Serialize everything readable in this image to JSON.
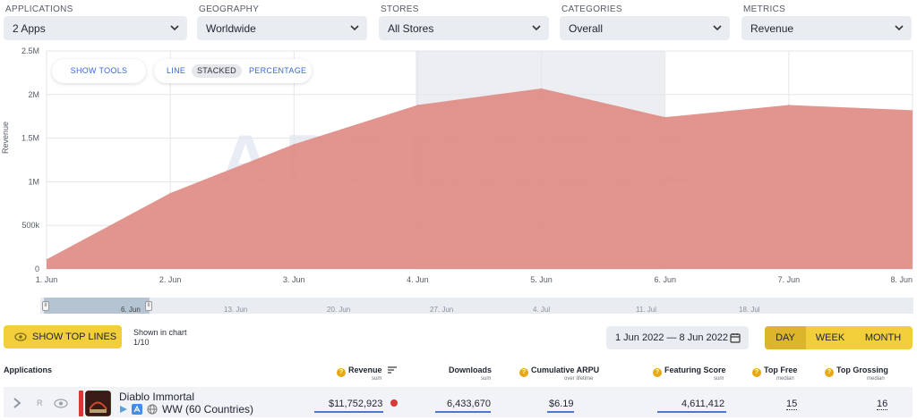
{
  "filters": [
    {
      "label": "APPLICATIONS",
      "value": "2 Apps"
    },
    {
      "label": "GEOGRAPHY",
      "value": "Worldwide"
    },
    {
      "label": "STORES",
      "value": "All Stores"
    },
    {
      "label": "CATEGORIES",
      "value": "Overall"
    },
    {
      "label": "METRICS",
      "value": "Revenue"
    }
  ],
  "chart": {
    "show_tools": "SHOW TOOLS",
    "modes": [
      "LINE",
      "STACKED",
      "PERCENTAGE"
    ],
    "active_mode": "STACKED",
    "watermark": "APPMAGIC"
  },
  "chart_data": {
    "type": "area",
    "categories": [
      "1. Jun",
      "2. Jun",
      "3. Jun",
      "4. Jun",
      "5. Jun",
      "6. Jun",
      "7. Jun",
      "8. Jun"
    ],
    "series": [
      {
        "values": [
          110000,
          870000,
          1430000,
          1880000,
          2070000,
          1740000,
          1880000,
          1820000
        ],
        "color": "#e08b84"
      }
    ],
    "ylabel": "Revenue",
    "yticks": [
      "0",
      "500k",
      "1M",
      "1.5M",
      "2M",
      "2.5M"
    ],
    "ylim": [
      0,
      2500000
    ],
    "grid": true
  },
  "navigator": {
    "labels": [
      "6. Jun",
      "13. Jun",
      "20. Jun",
      "27. Jun",
      "4. Jul",
      "11. Jul",
      "18. Jul"
    ]
  },
  "controls": {
    "show_top_lines": "SHOW TOP LINES",
    "shown_in_chart": "Shown in chart",
    "shown_count": "1/10",
    "date_range": "1 Jun 2022 — 8 Jun 2022",
    "periods": [
      "DAY",
      "WEEK",
      "MONTH"
    ],
    "active_period": "DAY"
  },
  "table": {
    "headers": {
      "applications": "Applications",
      "revenue": "Revenue",
      "revenue_sub": "sum",
      "downloads": "Downloads",
      "downloads_sub": "sum",
      "arpu": "Cumulative ARPU",
      "arpu_sub": "over lifetime",
      "featuring": "Featuring Score",
      "featuring_sub": "sum",
      "top_free": "Top Free",
      "top_free_sub": "median",
      "top_grossing": "Top Grossing",
      "top_grossing_sub": "median"
    },
    "rows": [
      {
        "name": "Diablo Immortal",
        "region": "WW (60 Countries)",
        "rank_letter": "R",
        "revenue": "$11,752,923",
        "downloads": "6,433,670",
        "arpu": "$6.19",
        "featuring": "4,611,412",
        "top_free": "15",
        "top_grossing": "16"
      }
    ]
  }
}
